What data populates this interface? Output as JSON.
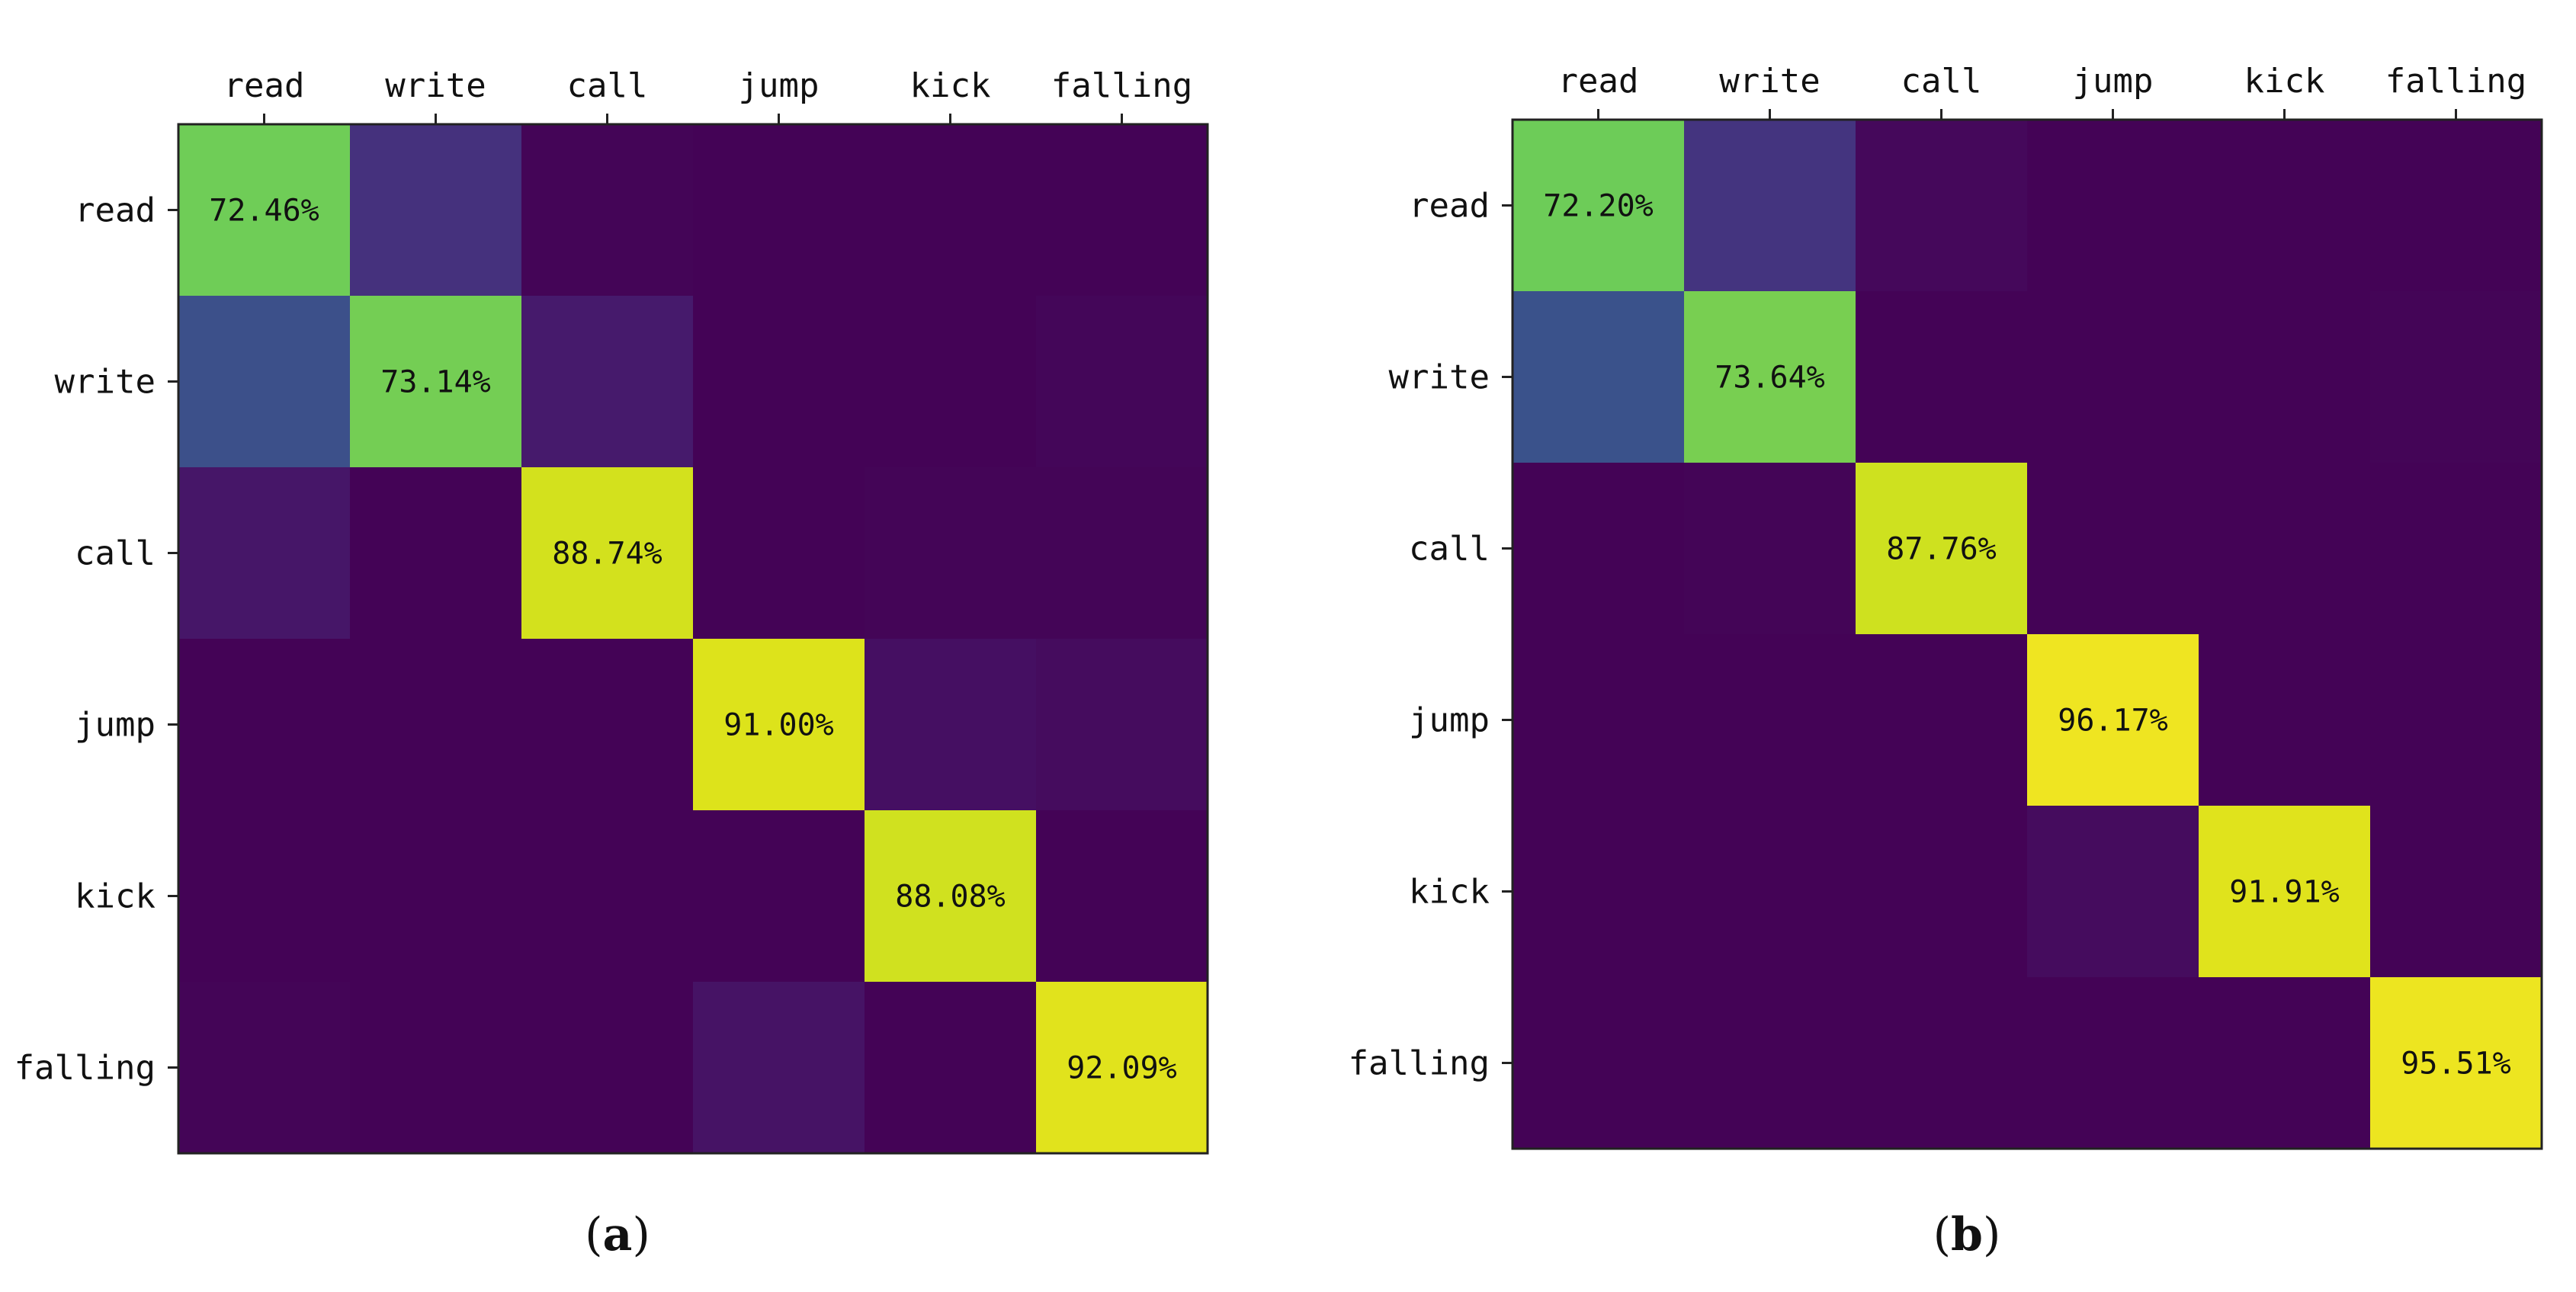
{
  "chart_data": [
    {
      "type": "heatmap",
      "panel_label": "a",
      "categories": [
        "read",
        "write",
        "call",
        "jump",
        "kick",
        "falling"
      ],
      "colorscale": "viridis",
      "vmin": 0,
      "vmax": 100,
      "values": [
        [
          72.46,
          14,
          1,
          0.5,
          0.5,
          0.5
        ],
        [
          25,
          73.14,
          7,
          0.5,
          0.5,
          1.5
        ],
        [
          6,
          0.5,
          88.74,
          0.5,
          1,
          1
        ],
        [
          0.5,
          0.5,
          0.5,
          91.0,
          4,
          3
        ],
        [
          0.5,
          0.5,
          0.5,
          0.5,
          88.08,
          0.5
        ],
        [
          1,
          0.5,
          0.5,
          5,
          0.5,
          92.09
        ]
      ],
      "cell_labels": [
        [
          "72.46%",
          "",
          "",
          "",
          "",
          ""
        ],
        [
          "",
          "73.14%",
          "",
          "",
          "",
          ""
        ],
        [
          "",
          "",
          "88.74%",
          "",
          "",
          ""
        ],
        [
          "",
          "",
          "",
          "91.00%",
          "",
          ""
        ],
        [
          "",
          "",
          "",
          "",
          "88.08%",
          ""
        ],
        [
          "",
          "",
          "",
          "",
          "",
          "92.09%"
        ]
      ]
    },
    {
      "type": "heatmap",
      "panel_label": "b",
      "categories": [
        "read",
        "write",
        "call",
        "jump",
        "kick",
        "falling"
      ],
      "colorscale": "viridis",
      "vmin": 0,
      "vmax": 100,
      "values": [
        [
          72.2,
          15,
          2,
          0.5,
          0.5,
          0.5
        ],
        [
          26,
          73.64,
          0.5,
          0.5,
          0.5,
          1
        ],
        [
          0.5,
          1,
          87.76,
          0.5,
          0.5,
          0.5
        ],
        [
          0.5,
          0.5,
          0.5,
          96.17,
          0.5,
          0.5
        ],
        [
          0.5,
          0.5,
          0.5,
          3,
          91.91,
          0.5
        ],
        [
          0.5,
          0.5,
          0.5,
          0.5,
          0.5,
          95.51
        ]
      ],
      "cell_labels": [
        [
          "72.20%",
          "",
          "",
          "",
          "",
          ""
        ],
        [
          "",
          "73.64%",
          "",
          "",
          "",
          ""
        ],
        [
          "",
          "",
          "87.76%",
          "",
          "",
          ""
        ],
        [
          "",
          "",
          "",
          "96.17%",
          "",
          ""
        ],
        [
          "",
          "",
          "",
          "",
          "91.91%",
          ""
        ],
        [
          "",
          "",
          "",
          "",
          "",
          "95.51%"
        ]
      ]
    }
  ]
}
